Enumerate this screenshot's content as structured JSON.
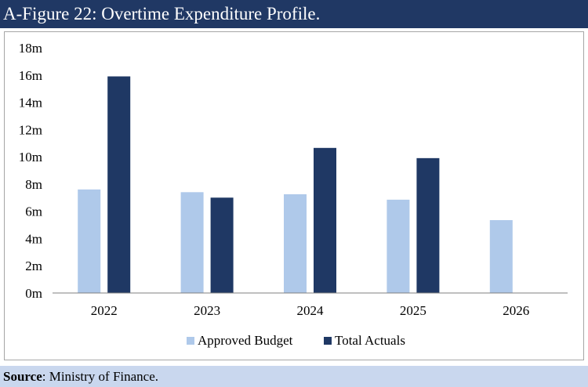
{
  "title": "A-Figure 22: Overtime Expenditure Profile.",
  "source": {
    "label": "Source",
    "text": ": Ministry of Finance."
  },
  "colors": {
    "title_bg": "#203864",
    "source_bg": "#c9d7ee",
    "approved": "#afc9ea",
    "actuals": "#1f3864",
    "axis": "#7f7f7f"
  },
  "chart_data": {
    "type": "bar",
    "categories": [
      "2022",
      "2023",
      "2024",
      "2025",
      "2026"
    ],
    "series": [
      {
        "name": "Approved Budget",
        "values": [
          7.6,
          7.4,
          7.25,
          6.85,
          5.35
        ]
      },
      {
        "name": "Total Actuals",
        "values": [
          15.9,
          7.0,
          10.65,
          9.9,
          null
        ]
      }
    ],
    "ylim": [
      0,
      18
    ],
    "yticks": [
      0,
      2,
      4,
      6,
      8,
      10,
      12,
      14,
      16,
      18
    ],
    "ytick_labels": [
      "0m",
      "2m",
      "4m",
      "6m",
      "8m",
      "10m",
      "12m",
      "14m",
      "16m",
      "18m"
    ],
    "legend_position": "bottom",
    "grid": false
  }
}
